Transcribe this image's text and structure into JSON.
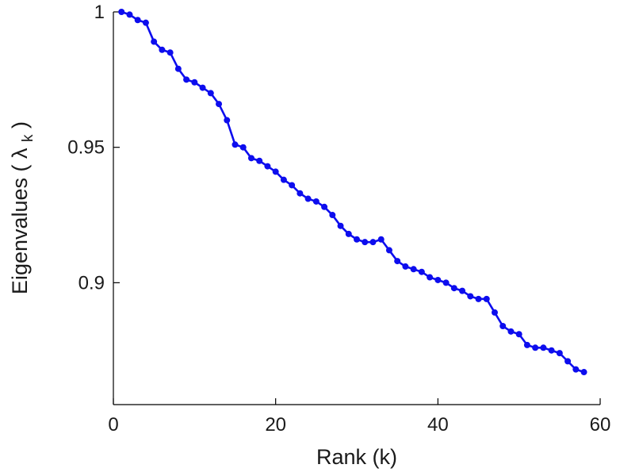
{
  "figure": {
    "background": "#ffffff"
  },
  "chart_data": {
    "type": "line",
    "title": "",
    "xlabel": "Rank (k)",
    "ylabel": "Eigenvalues ( λk )",
    "ylabel_parts": {
      "prefix": "Eigenvalues ( ",
      "symbol": "λ",
      "subscript": "k",
      "suffix": " )"
    },
    "x": [
      1,
      2,
      3,
      4,
      5,
      6,
      7,
      8,
      9,
      10,
      11,
      12,
      13,
      14,
      15,
      16,
      17,
      18,
      19,
      20,
      21,
      22,
      23,
      24,
      25,
      26,
      27,
      28,
      29,
      30,
      31,
      32,
      33,
      34,
      35,
      36,
      37,
      38,
      39,
      40,
      41,
      42,
      43,
      44,
      45,
      46,
      47,
      48,
      49,
      50,
      51,
      52,
      53,
      54,
      55,
      56,
      57,
      58
    ],
    "y": [
      1.0,
      0.999,
      0.997,
      0.996,
      0.989,
      0.986,
      0.985,
      0.979,
      0.975,
      0.974,
      0.972,
      0.97,
      0.966,
      0.96,
      0.951,
      0.95,
      0.946,
      0.945,
      0.943,
      0.941,
      0.938,
      0.936,
      0.933,
      0.931,
      0.93,
      0.928,
      0.925,
      0.921,
      0.918,
      0.916,
      0.915,
      0.915,
      0.916,
      0.912,
      0.908,
      0.906,
      0.905,
      0.904,
      0.902,
      0.901,
      0.9,
      0.898,
      0.897,
      0.895,
      0.894,
      0.894,
      0.889,
      0.884,
      0.882,
      0.881,
      0.877,
      0.876,
      0.876,
      0.875,
      0.874,
      0.871,
      0.868,
      0.867
    ],
    "xlim": [
      0,
      60
    ],
    "ylim": [
      0.855,
      1.0
    ],
    "xticks": [
      0,
      20,
      40,
      60
    ],
    "xtick_labels": [
      "0",
      "20",
      "40",
      "60"
    ],
    "yticks": [
      0.9,
      0.95,
      1
    ],
    "ytick_labels": [
      "0.9",
      "0.95",
      "1"
    ],
    "grid": false,
    "legend_position": "none",
    "line_color": "#0d0dee",
    "marker": "circle",
    "marker_size": 4,
    "line_width": 2.6,
    "axis_color": "#000000"
  }
}
